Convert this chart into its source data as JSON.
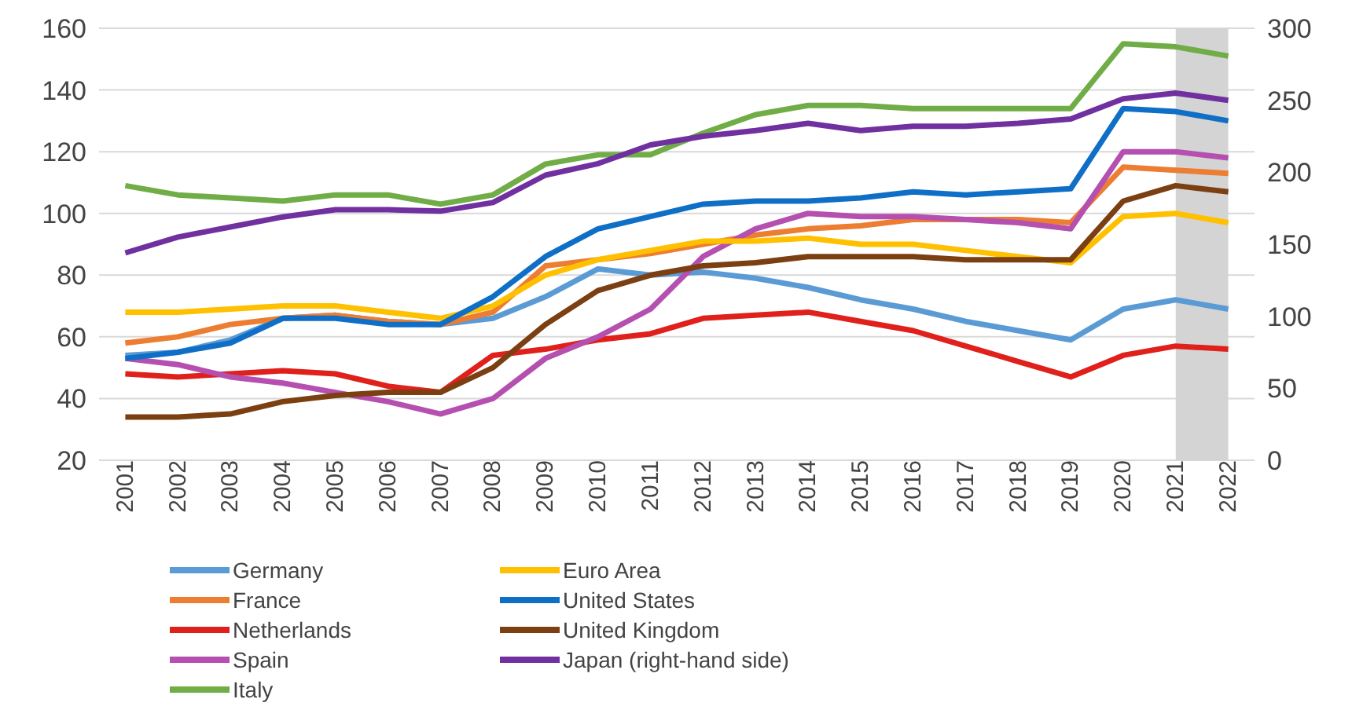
{
  "chart_data": {
    "type": "line",
    "x": [
      2001,
      2002,
      2003,
      2004,
      2005,
      2006,
      2007,
      2008,
      2009,
      2010,
      2011,
      2012,
      2013,
      2014,
      2015,
      2016,
      2017,
      2018,
      2019,
      2020,
      2021,
      2022
    ],
    "xlim": [
      2000.5,
      2022.5
    ],
    "xticks": [
      2001,
      2002,
      2003,
      2004,
      2005,
      2006,
      2007,
      2008,
      2009,
      2010,
      2011,
      2012,
      2013,
      2014,
      2015,
      2016,
      2017,
      2018,
      2019,
      2020,
      2021,
      2022
    ],
    "ylim": [
      20,
      160
    ],
    "yticks": [
      20,
      40,
      60,
      80,
      100,
      120,
      140,
      160
    ],
    "y2lim": [
      0,
      300
    ],
    "y2ticks": [
      0,
      50,
      100,
      150,
      200,
      250,
      300
    ],
    "grid": "y",
    "legend": "bottom",
    "marker": "none",
    "line_style": "solid",
    "bands": [
      {
        "axis": "x",
        "from": 2021,
        "to": 2022,
        "color": "#d4d4d4"
      }
    ],
    "series": [
      {
        "name": "Germany",
        "color": "#5b9bd5",
        "values": [
          54,
          55,
          59,
          66,
          67,
          65,
          64,
          66,
          73,
          82,
          80,
          81,
          79,
          76,
          72,
          69,
          65,
          62,
          59,
          69,
          72,
          69
        ]
      },
      {
        "name": "France",
        "color": "#ed7d31",
        "values": [
          58,
          60,
          64,
          66,
          67,
          65,
          64,
          68,
          83,
          85,
          87,
          90,
          93,
          95,
          96,
          98,
          98,
          98,
          97,
          115,
          114,
          113
        ]
      },
      {
        "name": "Netherlands",
        "color": "#e0201b",
        "values": [
          48,
          47,
          48,
          49,
          48,
          44,
          42,
          54,
          56,
          59,
          61,
          66,
          67,
          68,
          65,
          62,
          57,
          52,
          47,
          54,
          57,
          56
        ]
      },
      {
        "name": "Spain",
        "color": "#b54fb0",
        "values": [
          53,
          51,
          47,
          45,
          42,
          39,
          35,
          40,
          53,
          60,
          69,
          86,
          95,
          100,
          99,
          99,
          98,
          97,
          95,
          120,
          120,
          118
        ]
      },
      {
        "name": "Italy",
        "color": "#70ad47",
        "values": [
          109,
          106,
          105,
          104,
          106,
          106,
          103,
          106,
          116,
          119,
          119,
          126,
          132,
          135,
          135,
          134,
          134,
          134,
          134,
          155,
          154,
          151
        ]
      },
      {
        "name": "Euro Area",
        "color": "#ffc000",
        "values": [
          68,
          68,
          69,
          70,
          70,
          68,
          66,
          70,
          80,
          85,
          88,
          91,
          91,
          92,
          90,
          90,
          88,
          86,
          84,
          99,
          100,
          97
        ]
      },
      {
        "name": "United States",
        "color": "#0f6fc6",
        "values": [
          53,
          55,
          58,
          66,
          66,
          64,
          64,
          73,
          86,
          95,
          99,
          103,
          104,
          104,
          105,
          107,
          106,
          107,
          108,
          134,
          133,
          130
        ]
      },
      {
        "name": "United Kingdom",
        "color": "#7b3f12",
        "values": [
          34,
          34,
          35,
          39,
          41,
          42,
          42,
          50,
          64,
          75,
          80,
          83,
          84,
          86,
          86,
          86,
          85,
          85,
          85,
          104,
          109,
          107
        ]
      },
      {
        "name": "Japan (right-hand side)",
        "color": "#7030a0",
        "axis": "y2",
        "values": [
          144,
          155,
          162,
          169,
          174,
          174,
          173,
          179,
          198,
          206,
          219,
          225,
          229,
          234,
          229,
          232,
          232,
          234,
          237,
          251,
          255,
          250
        ]
      }
    ]
  }
}
